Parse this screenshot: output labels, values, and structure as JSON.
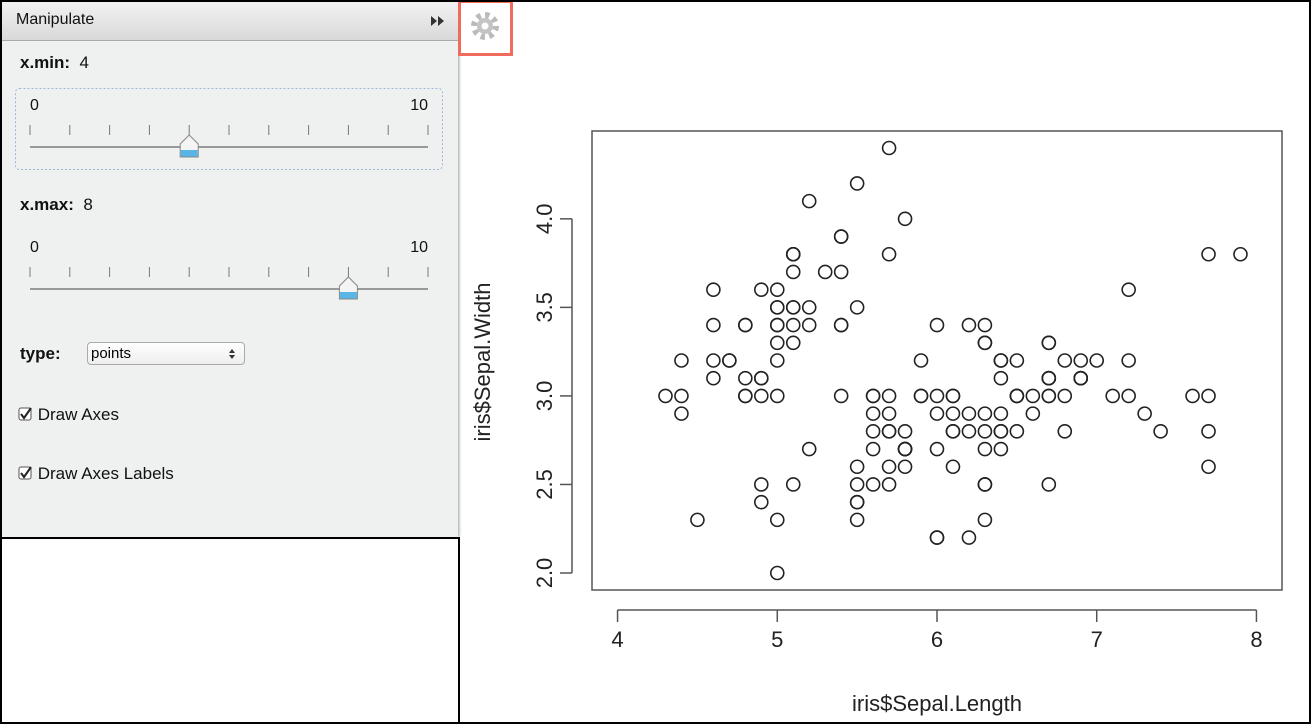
{
  "panel": {
    "title": "Manipulate",
    "controls": [
      {
        "label": "x.min:",
        "value": 4,
        "min": 0,
        "max": 10
      },
      {
        "label": "x.max:",
        "value": 8,
        "min": 0,
        "max": 10
      },
      {
        "label": "type:",
        "selected": "points"
      },
      {
        "label": "Draw Axes",
        "checked": true
      },
      {
        "label": "Draw Axes Labels",
        "checked": true
      }
    ]
  },
  "chart_data": {
    "type": "scatter",
    "x_label": "iris$Sepal.Length",
    "y_label": "iris$Sepal.Width",
    "color": "#222222",
    "x": [
      5.1,
      4.9,
      4.7,
      4.6,
      5.0,
      5.4,
      4.6,
      5.0,
      4.4,
      4.9,
      5.4,
      4.8,
      4.8,
      4.3,
      5.8,
      5.7,
      5.4,
      5.1,
      5.7,
      5.1,
      5.4,
      5.1,
      4.6,
      5.1,
      4.8,
      5.0,
      5.0,
      5.2,
      5.2,
      4.7,
      4.8,
      5.4,
      5.2,
      5.5,
      4.9,
      5.0,
      5.5,
      4.9,
      4.4,
      5.1,
      5.0,
      4.5,
      4.4,
      5.0,
      5.1,
      4.8,
      5.1,
      4.6,
      5.3,
      5.0,
      7.0,
      6.4,
      6.9,
      5.5,
      6.5,
      5.7,
      6.3,
      4.9,
      6.6,
      5.2,
      5.0,
      5.9,
      6.0,
      6.1,
      5.6,
      6.7,
      5.6,
      5.8,
      6.2,
      5.6,
      5.9,
      6.1,
      6.3,
      6.1,
      6.4,
      6.6,
      6.8,
      6.7,
      6.0,
      5.7,
      5.5,
      5.5,
      5.8,
      6.0,
      5.4,
      6.0,
      6.7,
      6.3,
      5.6,
      5.5,
      5.5,
      6.1,
      5.8,
      5.0,
      5.6,
      5.7,
      5.7,
      6.2,
      5.1,
      5.7,
      6.3,
      5.8,
      7.1,
      6.3,
      6.5,
      7.6,
      4.9,
      7.3,
      6.7,
      7.2,
      6.5,
      6.4,
      6.8,
      5.7,
      5.8,
      6.4,
      6.5,
      7.7,
      7.7,
      6.0,
      6.9,
      5.6,
      7.7,
      6.3,
      6.7,
      7.2,
      6.2,
      6.1,
      6.4,
      7.2,
      7.4,
      7.9,
      6.4,
      6.3,
      6.1,
      7.7,
      6.3,
      6.4,
      6.0,
      6.9,
      6.7,
      6.9,
      5.8,
      6.8,
      6.7,
      6.7,
      6.3,
      6.5,
      6.2,
      5.9
    ],
    "y": [
      3.5,
      3.0,
      3.2,
      3.1,
      3.6,
      3.9,
      3.4,
      3.4,
      2.9,
      3.1,
      3.7,
      3.4,
      3.0,
      3.0,
      4.0,
      4.4,
      3.9,
      3.5,
      3.8,
      3.8,
      3.4,
      3.7,
      3.6,
      3.3,
      3.4,
      3.0,
      3.4,
      3.5,
      3.4,
      3.2,
      3.1,
      3.4,
      4.1,
      4.2,
      3.1,
      3.2,
      3.5,
      3.6,
      3.0,
      3.4,
      3.5,
      2.3,
      3.2,
      3.5,
      3.8,
      3.0,
      3.8,
      3.2,
      3.7,
      3.3,
      3.2,
      3.2,
      3.1,
      2.3,
      2.8,
      2.8,
      3.3,
      2.4,
      2.9,
      2.7,
      2.0,
      3.0,
      2.2,
      2.9,
      2.9,
      3.1,
      3.0,
      2.7,
      2.2,
      2.5,
      3.2,
      2.8,
      2.5,
      2.8,
      2.9,
      3.0,
      2.8,
      3.0,
      2.9,
      2.6,
      2.4,
      2.4,
      2.7,
      2.7,
      3.0,
      3.4,
      3.1,
      2.3,
      3.0,
      2.5,
      2.6,
      3.0,
      2.6,
      2.3,
      2.7,
      3.0,
      2.9,
      2.9,
      2.5,
      2.8,
      3.3,
      2.7,
      3.0,
      2.9,
      3.0,
      3.0,
      2.5,
      2.9,
      2.5,
      3.6,
      3.2,
      2.7,
      3.0,
      2.5,
      2.8,
      3.2,
      3.0,
      3.8,
      2.6,
      2.2,
      3.2,
      2.8,
      2.8,
      2.7,
      3.3,
      3.2,
      2.8,
      3.0,
      2.8,
      3.0,
      2.8,
      3.8,
      2.8,
      2.8,
      2.6,
      3.0,
      3.4,
      3.1,
      3.0,
      3.1,
      3.1,
      3.1,
      2.7,
      3.2,
      3.3,
      3.0,
      2.5,
      3.0,
      3.4,
      3.0
    ],
    "xlim": [
      3.84,
      8.16
    ],
    "ylim": [
      1.904,
      4.496
    ],
    "xticks": [
      4,
      5,
      6,
      7,
      8
    ],
    "yticks": [
      {
        "value": 2,
        "label": "2.0"
      },
      {
        "value": 2.5,
        "label": "2.5"
      },
      {
        "value": 3,
        "label": "3.0"
      },
      {
        "value": 3.5,
        "label": "3.5"
      },
      {
        "value": 4,
        "label": "4.0"
      }
    ]
  }
}
